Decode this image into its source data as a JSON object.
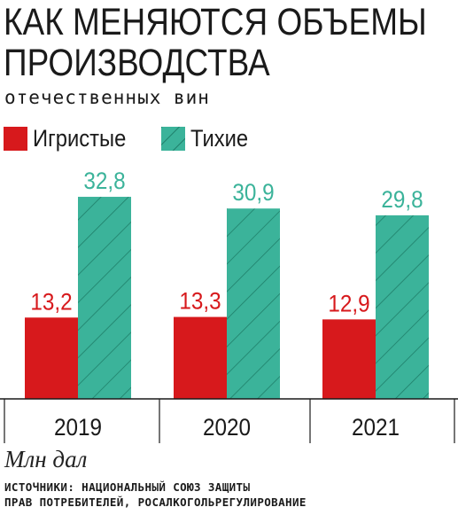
{
  "title_line1": "КАК МЕНЯЮТСЯ ОБЪЕМЫ",
  "title_line2": "ПРОИЗВОДСТВА",
  "subtitle": "отечественных вин",
  "unit": "Млн дал",
  "source_line1": "ИСТОЧНИКИ: НАЦИОНАЛЬНЫЙ СОЮЗ ЗАЩИТЫ",
  "source_line2": "ПРАВ ПОТРЕБИТЕЛЕЙ, РОСАЛКОГОЛЬРЕГУЛИРОВАНИЕ",
  "colors": {
    "sparkling": "#d7191c",
    "still": "#3bb39a",
    "still_hatch": "#1f7f6a"
  },
  "chart_data": {
    "type": "bar",
    "categories": [
      "2019",
      "2020",
      "2021"
    ],
    "series": [
      {
        "name": "Игристые",
        "values": [
          13.2,
          13.3,
          12.9
        ],
        "labels": [
          "13,2",
          "13,3",
          "12,9"
        ]
      },
      {
        "name": "Тихие",
        "values": [
          32.8,
          30.9,
          29.8
        ],
        "labels": [
          "32,8",
          "30,9",
          "29,8"
        ]
      }
    ],
    "ylim": [
      0,
      40
    ],
    "legend_position": "top-left",
    "grid": false
  }
}
